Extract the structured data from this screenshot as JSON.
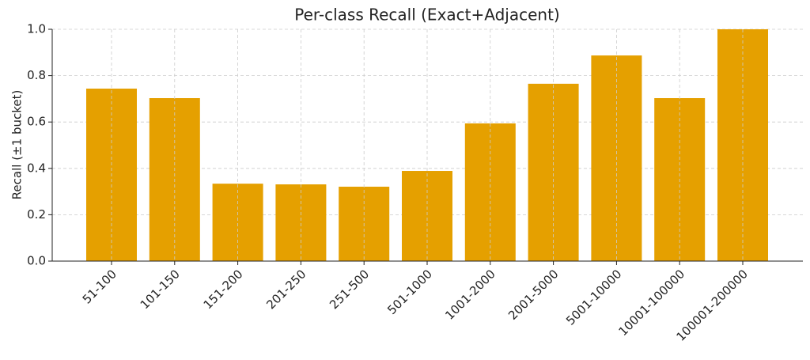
{
  "chart_data": {
    "type": "bar",
    "title": "Per-class Recall (Exact+Adjacent)",
    "y_label": "Recall (±1 bucket)",
    "categories": [
      "51-100",
      "101-150",
      "151-200",
      "201-250",
      "251-500",
      "501-1000",
      "1001-2000",
      "2001-5000",
      "5001-10000",
      "10001-100000",
      "100001-200000"
    ],
    "values": [
      0.744,
      0.703,
      0.334,
      0.331,
      0.321,
      0.389,
      0.594,
      0.765,
      0.887,
      0.703,
      1.0
    ],
    "color": "#e5a000",
    "ylim": [
      0,
      1.0
    ],
    "yticks": [
      {
        "value": 0,
        "label": "0.0"
      },
      0.2,
      0.4,
      0.6,
      0.8,
      {
        "value": 1.0,
        "label": "1.0"
      }
    ],
    "grid": true
  }
}
